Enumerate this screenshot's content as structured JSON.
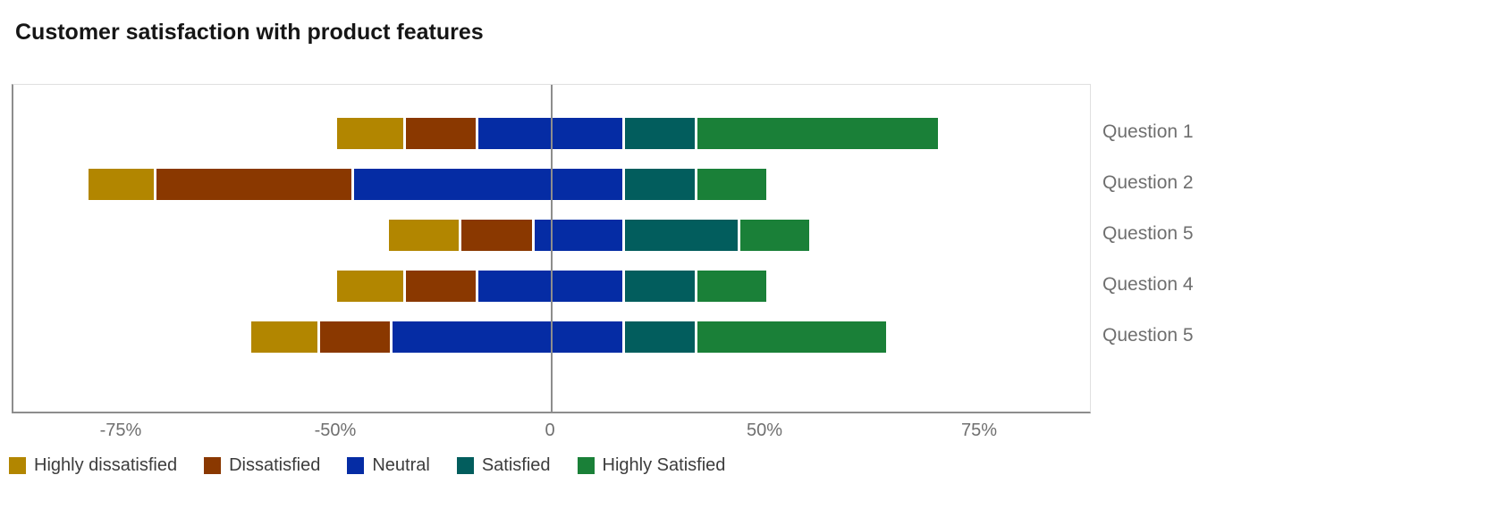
{
  "title": "Customer satisfaction with product features",
  "colors": {
    "axis_dark": "#8d8d8d",
    "axis_light": "#e0e0e0",
    "zero_line": "#8d8d8d",
    "tick_text": "#6f6f6f",
    "category_text": "#6f6f6f",
    "title_text": "#161616",
    "legend_text": "#3c3c3c",
    "background": "#ffffff"
  },
  "chart_data": {
    "type": "bar",
    "variant": "diverging-stacked-horizontal-likert",
    "title": "Customer satisfaction with product features",
    "categories": [
      "Question 1",
      "Question 2",
      "Question 5",
      "Question 4",
      "Question 5"
    ],
    "series": [
      {
        "name": "Highly dissatisfied",
        "color": "#b28600",
        "values": [
          16,
          8,
          17,
          16,
          8
        ]
      },
      {
        "name": "Dissatisfied",
        "color": "#8a3800",
        "values": [
          17,
          25,
          17,
          17,
          15
        ]
      },
      {
        "name": "Neutral",
        "color": "#052ca4",
        "values": [
          34,
          63,
          21,
          34,
          54
        ]
      },
      {
        "name": "Satisfied",
        "color": "#025d5d",
        "values": [
          17,
          17,
          27,
          17,
          17
        ]
      },
      {
        "name": "Highly Satisfied",
        "color": "#1a8038",
        "values": [
          36,
          16,
          11,
          16,
          30
        ]
      }
    ],
    "bar_start": [
      -50,
      -79,
      -38,
      -50,
      -60
    ],
    "bar_end": [
      70,
      50,
      55,
      50,
      64
    ],
    "x_ticks": [
      {
        "value": -75,
        "label": "-75%"
      },
      {
        "value": -50,
        "label": "-50%"
      },
      {
        "value": 0,
        "label": "0"
      },
      {
        "value": 50,
        "label": "50%"
      },
      {
        "value": 75,
        "label": "75%"
      }
    ],
    "x_axis_note": "tick labels are rendered at equal spacing; values in percent",
    "zero_reference_line": true,
    "grid": false,
    "legend_position": "bottom-left",
    "legend_labels": [
      "Highly dissatisfied",
      "Dissatisfied",
      "Neutral",
      "Satisfied",
      "Highly Satisfied"
    ]
  }
}
